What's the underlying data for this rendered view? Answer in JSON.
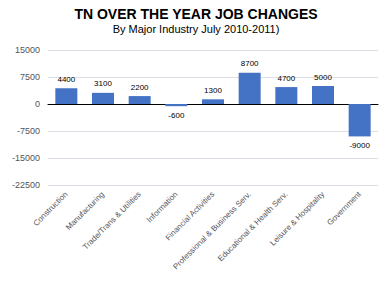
{
  "chart_data": {
    "type": "bar",
    "title": "TN OVER THE YEAR JOB CHANGES",
    "subtitle": "By Major Industry July 2010-2011)",
    "categories": [
      "Construction",
      "Manufacturing",
      "Trade/Trans & Utilities",
      "Information",
      "Financial Activities",
      "Professional & Business Serv.",
      "Educational & Health Serv.",
      "Leisure & Hospitality",
      "Government"
    ],
    "values": [
      4400,
      3100,
      2200,
      -600,
      1300,
      8700,
      4700,
      5000,
      -9000
    ],
    "color": "#4472c4",
    "ylim": [
      -22500,
      15000
    ],
    "yticks": [
      -22500,
      -15000,
      -7500,
      0,
      7500,
      15000
    ],
    "grid": true,
    "data_labels": true
  }
}
